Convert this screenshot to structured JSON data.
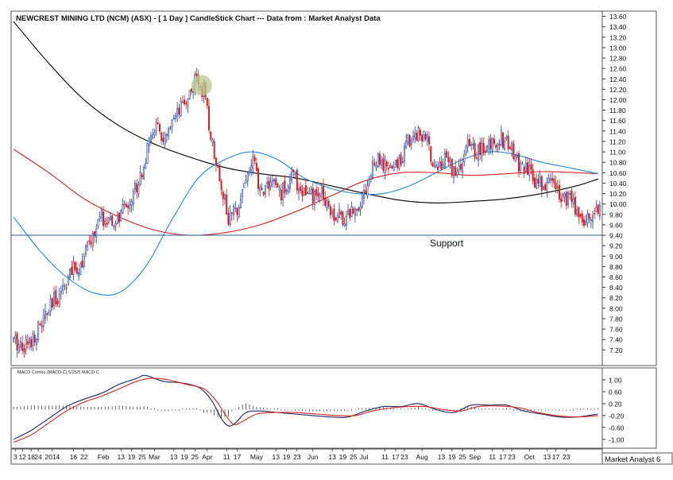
{
  "chart_data": {
    "type": "candlestick",
    "title": "NEWCREST MINING LTD (NCM) (ASX) -  [ 1 Day ] CandleStick Chart --- Data from : Market Analyst Data",
    "price_axis": {
      "ylim": [
        6.9,
        13.7
      ],
      "ticks": [
        "13.60",
        "13.40",
        "13.20",
        "13.00",
        "12.80",
        "12.60",
        "12.40",
        "12.20",
        "12.00",
        "11.80",
        "11.60",
        "11.40",
        "11.20",
        "11.00",
        "10.80",
        "10.60",
        "10.40",
        "10.20",
        "10.00",
        "9.80",
        "9.60",
        "9.40",
        "9.20",
        "9.00",
        "8.80",
        "8.60",
        "8.40",
        "8.20",
        "8.00",
        "7.80",
        "7.60",
        "7.40",
        "7.20"
      ]
    },
    "support": {
      "label": "Support",
      "value": 9.4
    },
    "price_path": [
      {
        "i": 0,
        "p": 7.35
      },
      {
        "i": 8,
        "p": 7.3
      },
      {
        "i": 14,
        "p": 7.6
      },
      {
        "i": 20,
        "p": 7.95
      },
      {
        "i": 26,
        "p": 8.3
      },
      {
        "i": 32,
        "p": 8.65
      },
      {
        "i": 38,
        "p": 8.85
      },
      {
        "i": 44,
        "p": 9.3
      },
      {
        "i": 50,
        "p": 9.75
      },
      {
        "i": 56,
        "p": 9.55
      },
      {
        "i": 62,
        "p": 9.85
      },
      {
        "i": 68,
        "p": 10.2
      },
      {
        "i": 74,
        "p": 10.75
      },
      {
        "i": 80,
        "p": 11.5
      },
      {
        "i": 86,
        "p": 11.2
      },
      {
        "i": 92,
        "p": 11.6
      },
      {
        "i": 98,
        "p": 12.0
      },
      {
        "i": 104,
        "p": 12.4
      },
      {
        "i": 108,
        "p": 12.15
      },
      {
        "i": 112,
        "p": 11.3
      },
      {
        "i": 118,
        "p": 10.4
      },
      {
        "i": 122,
        "p": 9.7
      },
      {
        "i": 126,
        "p": 9.85
      },
      {
        "i": 130,
        "p": 10.3
      },
      {
        "i": 136,
        "p": 10.85
      },
      {
        "i": 140,
        "p": 10.2
      },
      {
        "i": 146,
        "p": 10.45
      },
      {
        "i": 152,
        "p": 10.2
      },
      {
        "i": 158,
        "p": 10.55
      },
      {
        "i": 164,
        "p": 10.25
      },
      {
        "i": 170,
        "p": 10.1
      },
      {
        "i": 176,
        "p": 10.2
      },
      {
        "i": 182,
        "p": 9.8
      },
      {
        "i": 188,
        "p": 9.75
      },
      {
        "i": 194,
        "p": 9.9
      },
      {
        "i": 200,
        "p": 10.3
      },
      {
        "i": 206,
        "p": 10.85
      },
      {
        "i": 212,
        "p": 10.65
      },
      {
        "i": 218,
        "p": 10.75
      },
      {
        "i": 224,
        "p": 11.2
      },
      {
        "i": 230,
        "p": 11.4
      },
      {
        "i": 234,
        "p": 11.25
      },
      {
        "i": 240,
        "p": 10.7
      },
      {
        "i": 246,
        "p": 10.85
      },
      {
        "i": 252,
        "p": 10.55
      },
      {
        "i": 258,
        "p": 11.1
      },
      {
        "i": 264,
        "p": 11.0
      },
      {
        "i": 270,
        "p": 11.1
      },
      {
        "i": 276,
        "p": 11.3
      },
      {
        "i": 282,
        "p": 11.1
      },
      {
        "i": 288,
        "p": 10.7
      },
      {
        "i": 294,
        "p": 10.55
      },
      {
        "i": 300,
        "p": 10.35
      },
      {
        "i": 306,
        "p": 10.45
      },
      {
        "i": 312,
        "p": 10.15
      },
      {
        "i": 318,
        "p": 10.0
      },
      {
        "i": 324,
        "p": 9.65
      },
      {
        "i": 328,
        "p": 9.8
      },
      {
        "i": 332,
        "p": 9.95
      }
    ],
    "moving_averages": [
      {
        "name": "Long MA",
        "color": "#000000",
        "points": [
          {
            "i": 0,
            "v": 13.5
          },
          {
            "i": 20,
            "v": 12.7
          },
          {
            "i": 40,
            "v": 12.0
          },
          {
            "i": 60,
            "v": 11.5
          },
          {
            "i": 80,
            "v": 11.15
          },
          {
            "i": 100,
            "v": 10.9
          },
          {
            "i": 120,
            "v": 10.7
          },
          {
            "i": 140,
            "v": 10.58
          },
          {
            "i": 160,
            "v": 10.5
          },
          {
            "i": 180,
            "v": 10.35
          },
          {
            "i": 200,
            "v": 10.2
          },
          {
            "i": 220,
            "v": 10.07
          },
          {
            "i": 240,
            "v": 10.02
          },
          {
            "i": 260,
            "v": 10.05
          },
          {
            "i": 280,
            "v": 10.1
          },
          {
            "i": 300,
            "v": 10.2
          },
          {
            "i": 320,
            "v": 10.35
          },
          {
            "i": 332,
            "v": 10.48
          }
        ]
      },
      {
        "name": "Medium MA",
        "color": "#e02020",
        "points": [
          {
            "i": 0,
            "v": 11.05
          },
          {
            "i": 20,
            "v": 10.6
          },
          {
            "i": 40,
            "v": 10.1
          },
          {
            "i": 60,
            "v": 9.75
          },
          {
            "i": 80,
            "v": 9.5
          },
          {
            "i": 100,
            "v": 9.4
          },
          {
            "i": 120,
            "v": 9.45
          },
          {
            "i": 140,
            "v": 9.6
          },
          {
            "i": 160,
            "v": 9.85
          },
          {
            "i": 180,
            "v": 10.15
          },
          {
            "i": 200,
            "v": 10.45
          },
          {
            "i": 220,
            "v": 10.6
          },
          {
            "i": 240,
            "v": 10.6
          },
          {
            "i": 260,
            "v": 10.55
          },
          {
            "i": 280,
            "v": 10.58
          },
          {
            "i": 300,
            "v": 10.62
          },
          {
            "i": 320,
            "v": 10.6
          },
          {
            "i": 332,
            "v": 10.58
          }
        ]
      },
      {
        "name": "Short MA",
        "color": "#2288dd",
        "points": [
          {
            "i": 0,
            "v": 9.75
          },
          {
            "i": 15,
            "v": 9.1
          },
          {
            "i": 30,
            "v": 8.6
          },
          {
            "i": 45,
            "v": 8.3
          },
          {
            "i": 60,
            "v": 8.3
          },
          {
            "i": 75,
            "v": 8.8
          },
          {
            "i": 90,
            "v": 9.7
          },
          {
            "i": 105,
            "v": 10.5
          },
          {
            "i": 120,
            "v": 10.85
          },
          {
            "i": 135,
            "v": 11.0
          },
          {
            "i": 150,
            "v": 10.85
          },
          {
            "i": 165,
            "v": 10.5
          },
          {
            "i": 180,
            "v": 10.3
          },
          {
            "i": 195,
            "v": 10.2
          },
          {
            "i": 210,
            "v": 10.2
          },
          {
            "i": 225,
            "v": 10.35
          },
          {
            "i": 240,
            "v": 10.6
          },
          {
            "i": 255,
            "v": 10.85
          },
          {
            "i": 270,
            "v": 11.0
          },
          {
            "i": 285,
            "v": 10.95
          },
          {
            "i": 300,
            "v": 10.8
          },
          {
            "i": 315,
            "v": 10.7
          },
          {
            "i": 332,
            "v": 10.58
          }
        ]
      }
    ],
    "highlight_bar_index": 105,
    "macd": {
      "label": "MACD Combo (MACD-C) 5/25/5 MACD-C",
      "ylim": [
        -1.3,
        1.4
      ],
      "ticks": [
        "1.00",
        "0.60",
        "0.20",
        "-0.20",
        "-0.60",
        "-1.00"
      ],
      "macd_points": [
        {
          "i": 0,
          "v": -1.0
        },
        {
          "i": 10,
          "v": -0.7
        },
        {
          "i": 20,
          "v": -0.3
        },
        {
          "i": 30,
          "v": 0.1
        },
        {
          "i": 40,
          "v": 0.35
        },
        {
          "i": 50,
          "v": 0.55
        },
        {
          "i": 60,
          "v": 0.85
        },
        {
          "i": 70,
          "v": 1.05
        },
        {
          "i": 75,
          "v": 1.15
        },
        {
          "i": 85,
          "v": 0.95
        },
        {
          "i": 95,
          "v": 0.9
        },
        {
          "i": 105,
          "v": 0.75
        },
        {
          "i": 112,
          "v": 0.35
        },
        {
          "i": 118,
          "v": -0.3
        },
        {
          "i": 122,
          "v": -0.55
        },
        {
          "i": 126,
          "v": -0.45
        },
        {
          "i": 132,
          "v": -0.1
        },
        {
          "i": 140,
          "v": -0.05
        },
        {
          "i": 150,
          "v": -0.1
        },
        {
          "i": 160,
          "v": -0.15
        },
        {
          "i": 170,
          "v": -0.2
        },
        {
          "i": 180,
          "v": -0.25
        },
        {
          "i": 190,
          "v": -0.25
        },
        {
          "i": 200,
          "v": -0.05
        },
        {
          "i": 210,
          "v": 0.1
        },
        {
          "i": 220,
          "v": 0.1
        },
        {
          "i": 230,
          "v": 0.2
        },
        {
          "i": 240,
          "v": 0.0
        },
        {
          "i": 250,
          "v": -0.1
        },
        {
          "i": 260,
          "v": 0.15
        },
        {
          "i": 270,
          "v": 0.15
        },
        {
          "i": 280,
          "v": 0.15
        },
        {
          "i": 290,
          "v": -0.05
        },
        {
          "i": 300,
          "v": -0.15
        },
        {
          "i": 310,
          "v": -0.25
        },
        {
          "i": 320,
          "v": -0.25
        },
        {
          "i": 332,
          "v": -0.15
        }
      ],
      "signal_points": [
        {
          "i": 0,
          "v": -1.1
        },
        {
          "i": 10,
          "v": -0.85
        },
        {
          "i": 20,
          "v": -0.45
        },
        {
          "i": 30,
          "v": -0.05
        },
        {
          "i": 40,
          "v": 0.25
        },
        {
          "i": 50,
          "v": 0.45
        },
        {
          "i": 60,
          "v": 0.7
        },
        {
          "i": 70,
          "v": 0.95
        },
        {
          "i": 78,
          "v": 1.05
        },
        {
          "i": 88,
          "v": 1.0
        },
        {
          "i": 98,
          "v": 0.85
        },
        {
          "i": 108,
          "v": 0.7
        },
        {
          "i": 115,
          "v": 0.3
        },
        {
          "i": 120,
          "v": -0.15
        },
        {
          "i": 125,
          "v": -0.5
        },
        {
          "i": 130,
          "v": -0.4
        },
        {
          "i": 138,
          "v": -0.15
        },
        {
          "i": 148,
          "v": -0.1
        },
        {
          "i": 160,
          "v": -0.1
        },
        {
          "i": 172,
          "v": -0.15
        },
        {
          "i": 184,
          "v": -0.2
        },
        {
          "i": 194,
          "v": -0.2
        },
        {
          "i": 204,
          "v": -0.05
        },
        {
          "i": 214,
          "v": 0.05
        },
        {
          "i": 224,
          "v": 0.1
        },
        {
          "i": 234,
          "v": 0.1
        },
        {
          "i": 244,
          "v": 0.0
        },
        {
          "i": 254,
          "v": -0.05
        },
        {
          "i": 264,
          "v": 0.1
        },
        {
          "i": 276,
          "v": 0.12
        },
        {
          "i": 288,
          "v": 0.05
        },
        {
          "i": 298,
          "v": -0.1
        },
        {
          "i": 308,
          "v": -0.2
        },
        {
          "i": 320,
          "v": -0.25
        },
        {
          "i": 332,
          "v": -0.2
        }
      ]
    },
    "x_axis": {
      "labels": [
        {
          "i": 1,
          "t": "3"
        },
        {
          "i": 5,
          "t": "12"
        },
        {
          "i": 10,
          "t": "18"
        },
        {
          "i": 14,
          "t": "24"
        },
        {
          "i": 22,
          "t": "2014"
        },
        {
          "i": 34,
          "t": "16"
        },
        {
          "i": 40,
          "t": "22"
        },
        {
          "i": 51,
          "t": "Feb"
        },
        {
          "i": 61,
          "t": "13"
        },
        {
          "i": 67,
          "t": "19"
        },
        {
          "i": 73,
          "t": "25"
        },
        {
          "i": 80,
          "t": "Mar"
        },
        {
          "i": 91,
          "t": "13"
        },
        {
          "i": 97,
          "t": "19"
        },
        {
          "i": 103,
          "t": "25"
        },
        {
          "i": 110,
          "t": "Apr"
        },
        {
          "i": 121,
          "t": "11"
        },
        {
          "i": 127,
          "t": "17"
        },
        {
          "i": 138,
          "t": "May"
        },
        {
          "i": 149,
          "t": "13"
        },
        {
          "i": 155,
          "t": "19"
        },
        {
          "i": 161,
          "t": "23"
        },
        {
          "i": 170,
          "t": "Jun"
        },
        {
          "i": 181,
          "t": "13"
        },
        {
          "i": 187,
          "t": "19"
        },
        {
          "i": 193,
          "t": "25"
        },
        {
          "i": 199,
          "t": "Jul"
        },
        {
          "i": 211,
          "t": "11"
        },
        {
          "i": 217,
          "t": "17"
        },
        {
          "i": 222,
          "t": "23"
        },
        {
          "i": 232,
          "t": "Aug"
        },
        {
          "i": 243,
          "t": "13"
        },
        {
          "i": 249,
          "t": "19"
        },
        {
          "i": 255,
          "t": "25"
        },
        {
          "i": 262,
          "t": "Sep"
        },
        {
          "i": 272,
          "t": "11"
        },
        {
          "i": 278,
          "t": "17"
        },
        {
          "i": 283,
          "t": "23"
        },
        {
          "i": 293,
          "t": "Oct"
        },
        {
          "i": 303,
          "t": "13"
        },
        {
          "i": 308,
          "t": "17"
        },
        {
          "i": 314,
          "t": "23"
        }
      ],
      "n_bars": 334
    },
    "footer_label": "Market Analyst 6"
  }
}
